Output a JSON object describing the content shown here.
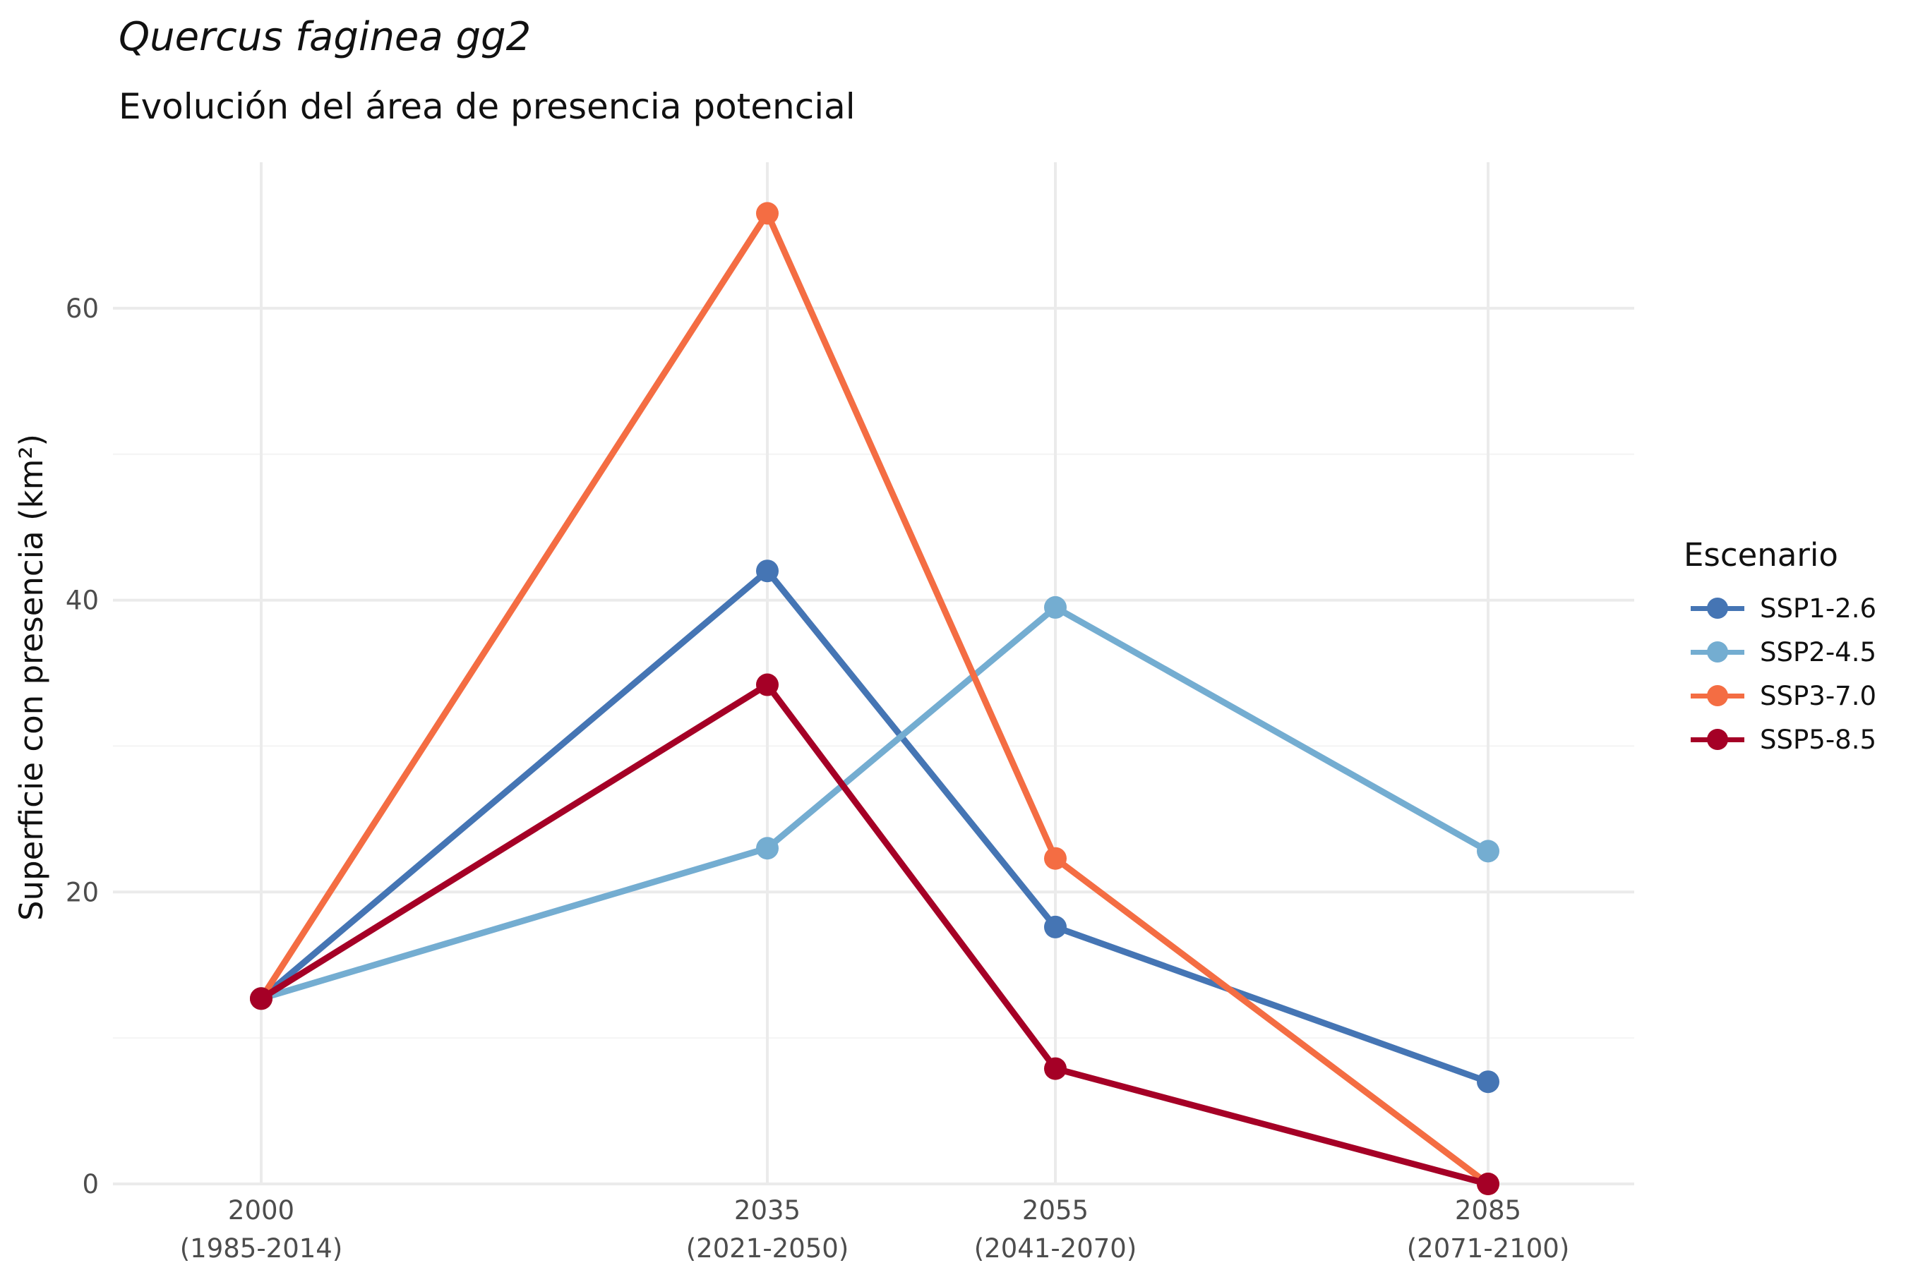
{
  "chart_data": {
    "type": "line",
    "title": "Quercus faginea gg2",
    "subtitle": "Evolución del área de presencia potencial",
    "ylabel": "Superficie con presencia (km²)",
    "ylim": [
      0,
      70
    ],
    "yticks": [
      0,
      20,
      40,
      60
    ],
    "x": [
      2000,
      2035,
      2055,
      2085
    ],
    "x_tick_labels": [
      {
        "year": "2000",
        "period": "(1985-2014)"
      },
      {
        "year": "2035",
        "period": "(2021-2050)"
      },
      {
        "year": "2055",
        "period": "(2041-2070)"
      },
      {
        "year": "2085",
        "period": "(2071-2100)"
      }
    ],
    "grid": true,
    "legend_title": "Escenario",
    "legend_position": "right",
    "series": [
      {
        "name": "SSP1-2.6",
        "color": "#4575b4",
        "values": [
          12.7,
          42.0,
          17.6,
          7.0
        ]
      },
      {
        "name": "SSP2-4.5",
        "color": "#74add1",
        "values": [
          12.7,
          23.0,
          39.5,
          22.8
        ]
      },
      {
        "name": "SSP3-7.0",
        "color": "#f46d43",
        "values": [
          12.7,
          66.5,
          22.3,
          0.0
        ]
      },
      {
        "name": "SSP5-8.5",
        "color": "#a50026",
        "values": [
          12.7,
          34.2,
          7.9,
          0.0
        ]
      }
    ]
  }
}
